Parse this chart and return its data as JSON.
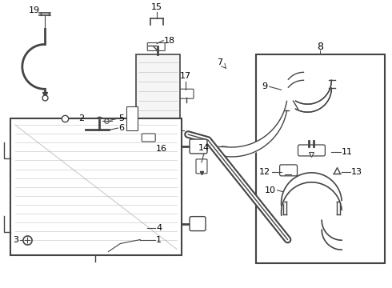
{
  "background_color": "#ffffff",
  "line_color": "#444444",
  "text_color": "#000000",
  "box_color": "#333333",
  "figsize": [
    4.9,
    3.6
  ],
  "dpi": 100,
  "lw_tube": 2.0,
  "lw_thin": 0.8,
  "fs": 7.0
}
